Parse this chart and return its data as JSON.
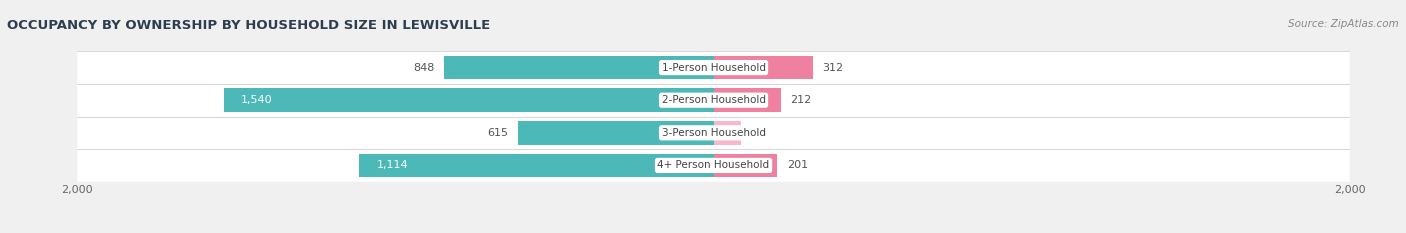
{
  "title": "OCCUPANCY BY OWNERSHIP BY HOUSEHOLD SIZE IN LEWISVILLE",
  "source": "Source: ZipAtlas.com",
  "categories": [
    "1-Person Household",
    "2-Person Household",
    "3-Person Household",
    "4+ Person Household"
  ],
  "owner_values": [
    848,
    1540,
    615,
    1114
  ],
  "renter_values": [
    312,
    212,
    86,
    201
  ],
  "owner_color": "#4db8b8",
  "renter_color": "#f080a0",
  "renter_color_light": "#f8b8cc",
  "background_color": "#f0f0f0",
  "row_bg_color": "#ffffff",
  "xlim": 2000,
  "bar_height": 0.72,
  "title_fontsize": 9.5,
  "source_fontsize": 7.5,
  "label_fontsize": 8,
  "axis_label_fontsize": 8,
  "legend_fontsize": 8,
  "category_fontsize": 7.5
}
